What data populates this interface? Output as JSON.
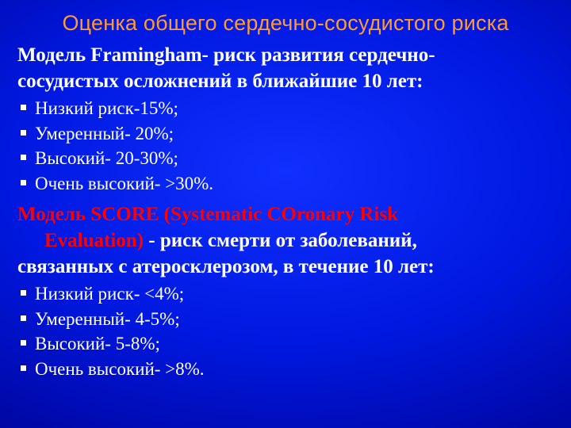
{
  "colors": {
    "title": "#ff9933",
    "red": "#ff0000",
    "white": "#ffffff"
  },
  "title": "Оценка общего сердечно-сосудистого риска",
  "framingham": {
    "line1": "Модель Framingham- риск развития сердечно-",
    "line2": "сосудистых осложнений в ближайшие 10 лет:",
    "items": [
      "Низкий риск-15%;",
      "Умеренный- 20%;",
      "Высокий- 20-30%;",
      "Очень высокий- >30%."
    ]
  },
  "score": {
    "red_line1": "Модель SCORE (Systematic COronary Risk",
    "red_line2_prefix": "Evaluation) ",
    "white_line2_suffix": "- риск смерти от заболеваний,",
    "line3": "связанных с атеросклерозом, в течение 10 лет:",
    "items": [
      "Низкий риск- <4%;",
      "Умеренный- 4-5%;",
      "Высокий- 5-8%;",
      "Очень высокий- >8%."
    ]
  }
}
